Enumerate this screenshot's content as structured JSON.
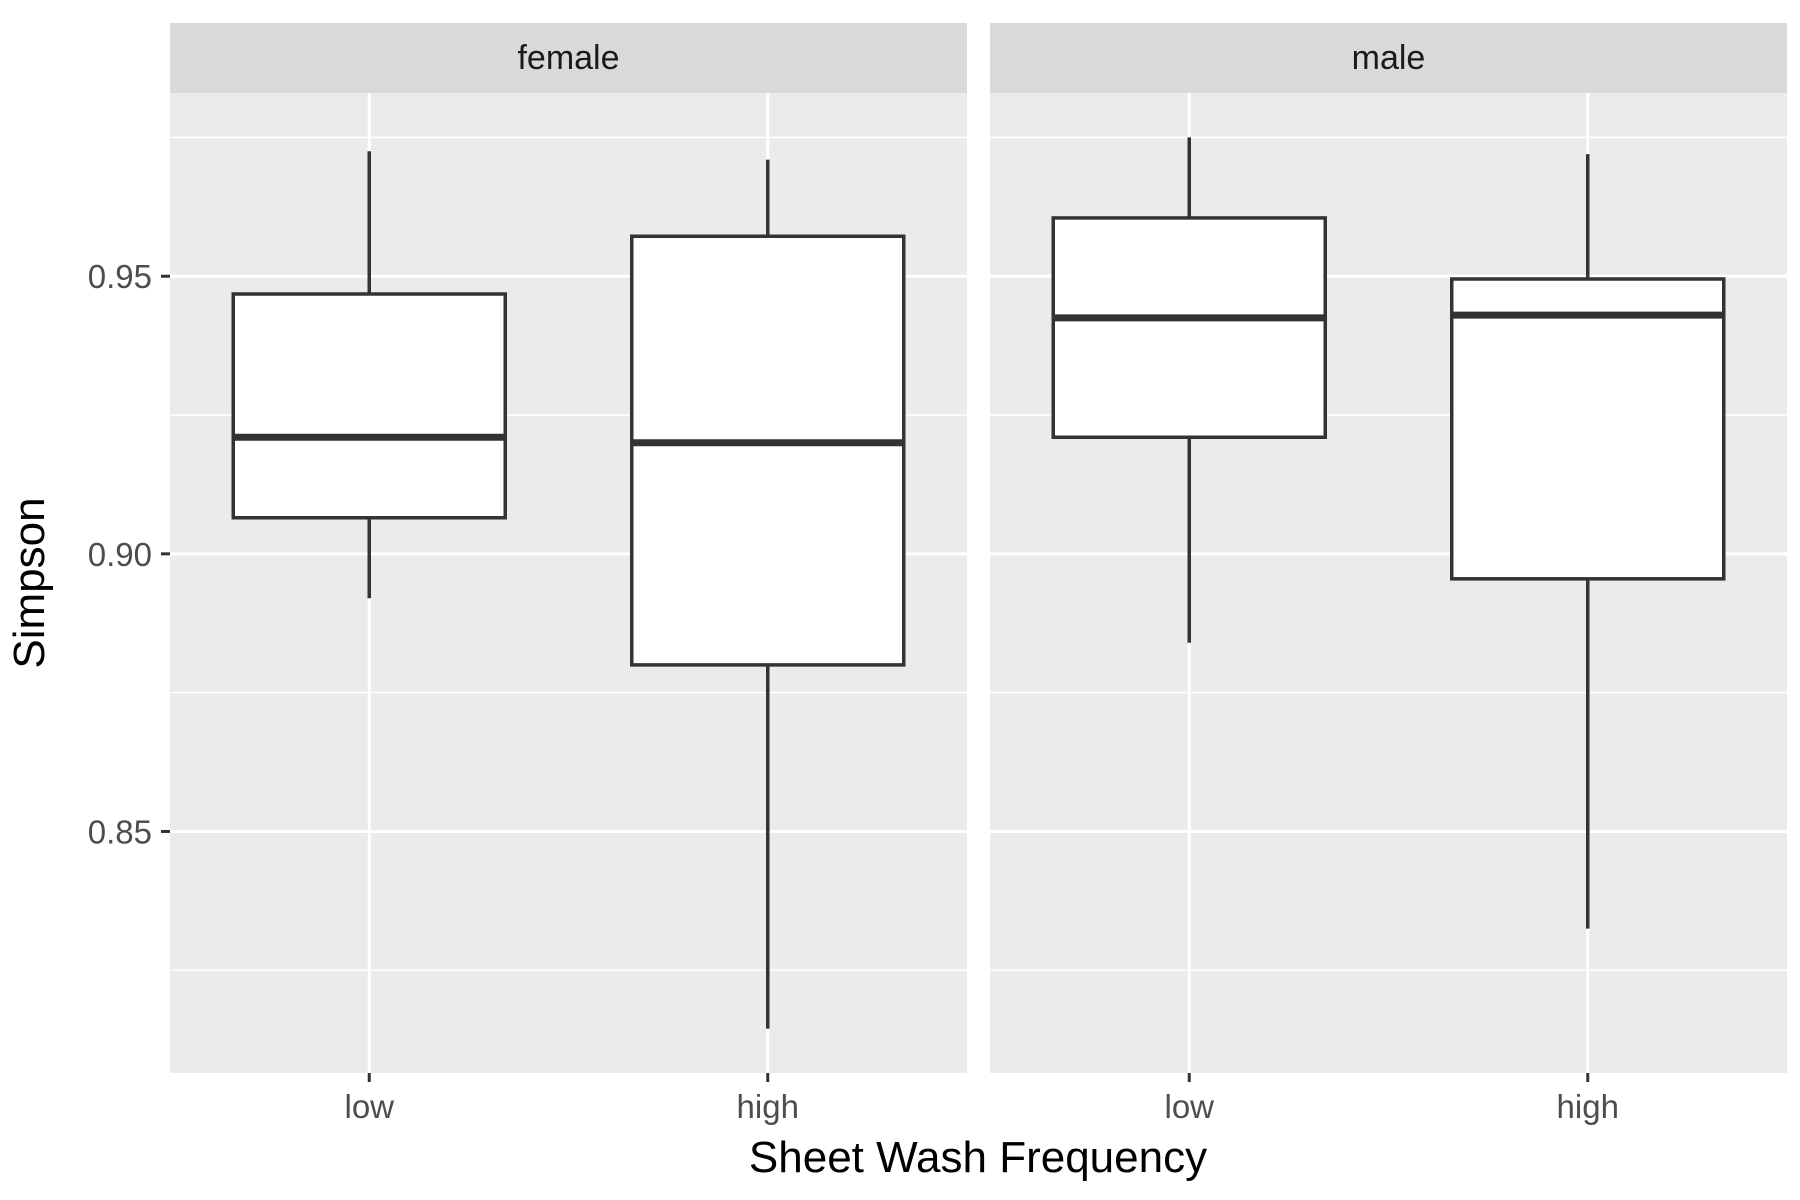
{
  "chart_data": {
    "type": "boxplot",
    "xlabel": "Sheet Wash Frequency",
    "ylabel": "Simpson",
    "categories": [
      "low",
      "high"
    ],
    "yticks": [
      0.85,
      0.9,
      0.95
    ],
    "ytick_labels": [
      "0.85",
      "0.90",
      "0.95"
    ],
    "ylim": [
      0.8065,
      0.983
    ],
    "grid": true,
    "facets": [
      {
        "label": "female",
        "boxes": [
          {
            "category": "low",
            "min": 0.892,
            "q1": 0.9065,
            "median": 0.921,
            "q3": 0.9468,
            "max": 0.9725
          },
          {
            "category": "high",
            "min": 0.8145,
            "q1": 0.88,
            "median": 0.92,
            "q3": 0.9572,
            "max": 0.971
          }
        ]
      },
      {
        "label": "male",
        "boxes": [
          {
            "category": "low",
            "min": 0.884,
            "q1": 0.921,
            "median": 0.9425,
            "q3": 0.9605,
            "max": 0.975
          },
          {
            "category": "high",
            "min": 0.8325,
            "q1": 0.8955,
            "median": 0.943,
            "q3": 0.9495,
            "max": 0.972
          }
        ]
      }
    ]
  },
  "colors": {
    "panel_background": "#ebebeb",
    "strip_background": "#d9d9d9",
    "gridline": "#ffffff",
    "box_fill": "#ffffff",
    "box_line": "#333333"
  }
}
